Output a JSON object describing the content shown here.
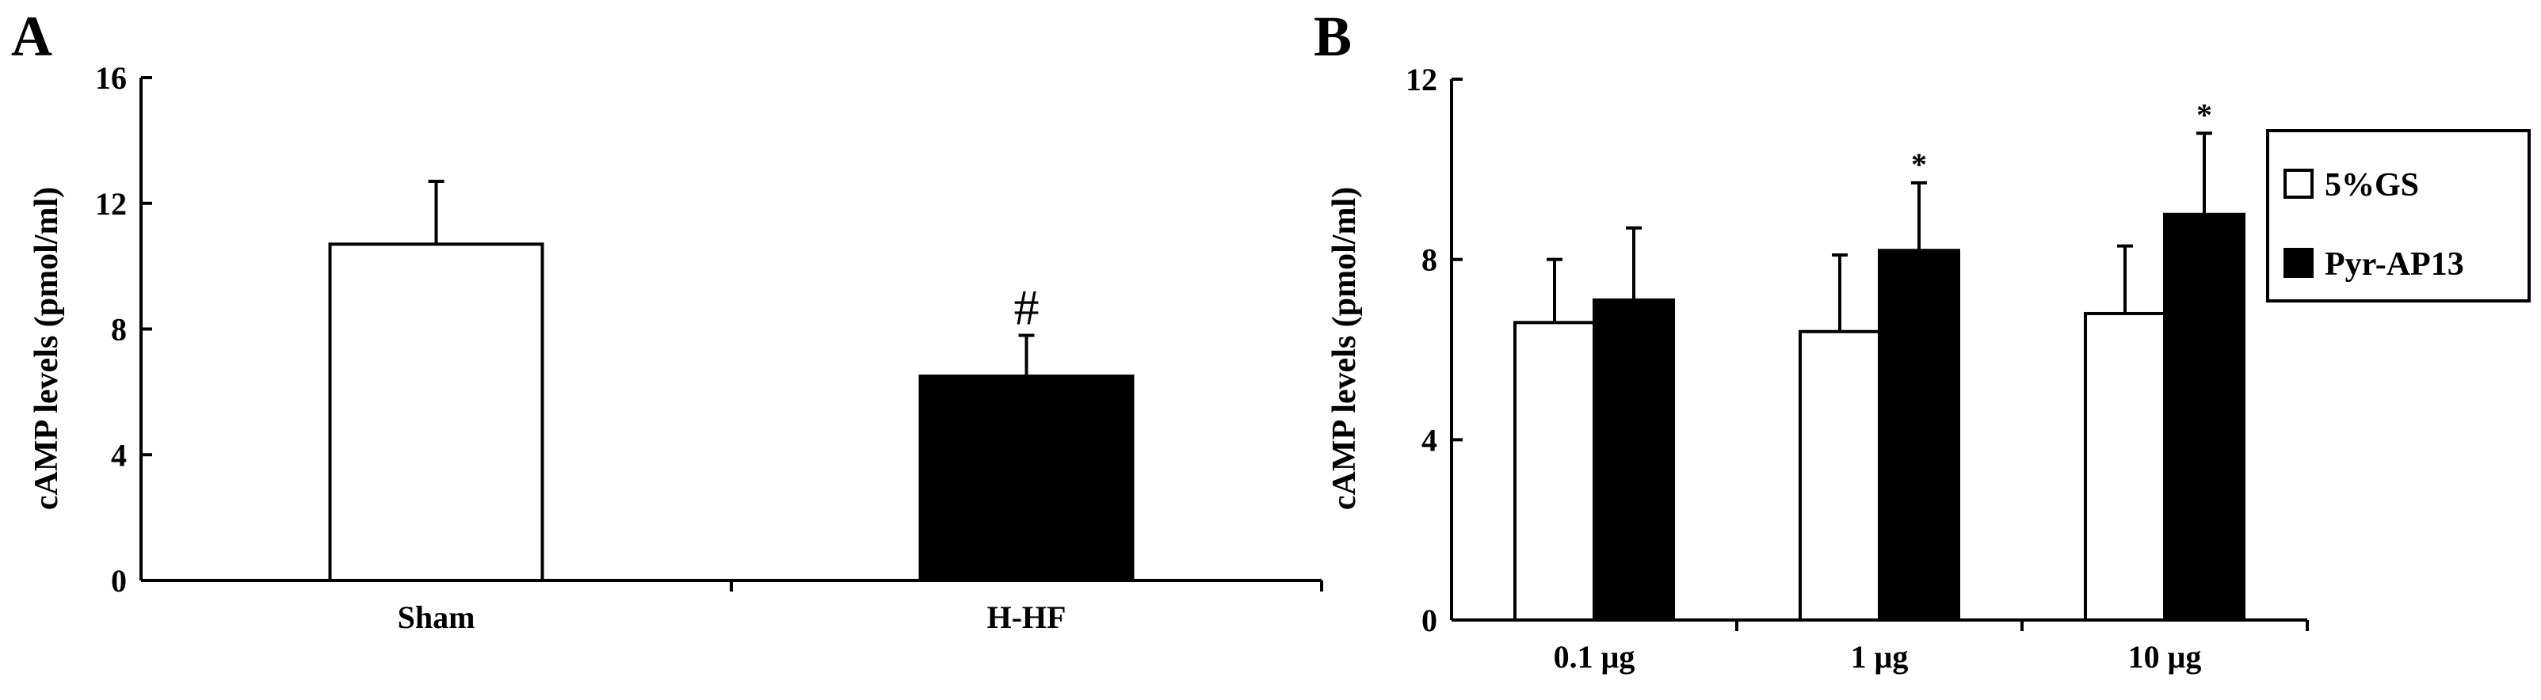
{
  "chart_data": [
    {
      "panel": "A",
      "type": "bar",
      "xlabel": "",
      "ylabel": "cAMP levels (pmol/ml)",
      "ylim": [
        0,
        16
      ],
      "yticks": [
        0,
        4,
        8,
        12,
        16
      ],
      "categories": [
        "Sham",
        "H-HF"
      ],
      "values": [
        10.7,
        6.5
      ],
      "errors": [
        2.0,
        1.3
      ],
      "bar_colors": [
        "#ffffff",
        "#000000"
      ],
      "significance": [
        "",
        "#"
      ]
    },
    {
      "panel": "B",
      "type": "bar",
      "xlabel": "",
      "ylabel": "cAMP levels (pmol/ml)",
      "ylim": [
        0,
        12
      ],
      "yticks": [
        0,
        4,
        8,
        12
      ],
      "categories": [
        "0.1 μg",
        "1 μg",
        "10 μg"
      ],
      "series": [
        {
          "name": "5%GS",
          "color": "#ffffff",
          "values": [
            6.6,
            6.4,
            6.8
          ],
          "errors": [
            1.4,
            1.7,
            1.5
          ],
          "significance": [
            "",
            "",
            ""
          ]
        },
        {
          "name": "Pyr-AP13",
          "color": "#000000",
          "values": [
            7.1,
            8.2,
            9.0
          ],
          "errors": [
            1.6,
            1.5,
            1.8
          ],
          "significance": [
            "",
            "*",
            "*"
          ]
        }
      ],
      "legend_position": "top-right"
    }
  ]
}
